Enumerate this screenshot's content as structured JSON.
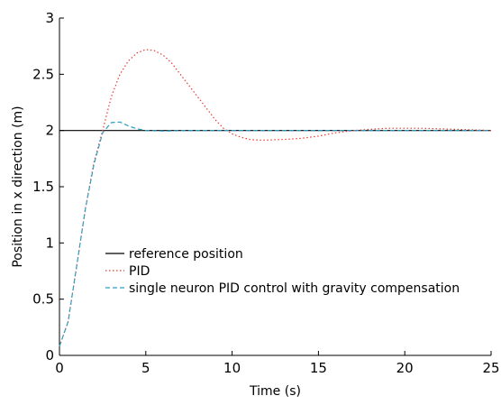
{
  "chart_data": {
    "type": "line",
    "xlabel": "Time (s)",
    "ylabel": "Position in x direction (m)",
    "xlim": [
      0,
      25
    ],
    "ylim": [
      0,
      3
    ],
    "x_ticks": [
      0,
      5,
      10,
      15,
      20,
      25
    ],
    "x_tick_labels": [
      "0",
      "5",
      "10",
      "15",
      "20",
      "25"
    ],
    "y_ticks": [
      0,
      0.5,
      1,
      1.5,
      2,
      2.5,
      3
    ],
    "y_tick_labels": [
      "0",
      "0.5",
      "1",
      "1.5",
      "2",
      "2.5",
      "3"
    ],
    "grid": false,
    "legend_position": "center-left",
    "series": [
      {
        "name": "reference position",
        "color": "#000000",
        "style": "solid",
        "x": [
          0,
          25
        ],
        "y": [
          2,
          2
        ]
      },
      {
        "name": "PID",
        "color": "#e8392f",
        "style": "dotted",
        "x": [
          0,
          0.5,
          1,
          1.5,
          2,
          2.5,
          3,
          3.5,
          4,
          4.5,
          5,
          5.5,
          6,
          6.5,
          7,
          7.5,
          8,
          8.5,
          9,
          9.5,
          10,
          10.5,
          11,
          11.5,
          12,
          12.5,
          13,
          14,
          15,
          16,
          17,
          18,
          19,
          20,
          21,
          22,
          23,
          24,
          25
        ],
        "y": [
          0.08,
          0.3,
          0.8,
          1.3,
          1.72,
          2.0,
          2.3,
          2.5,
          2.62,
          2.69,
          2.72,
          2.71,
          2.67,
          2.6,
          2.5,
          2.4,
          2.3,
          2.2,
          2.1,
          2.02,
          1.97,
          1.94,
          1.92,
          1.915,
          1.915,
          1.918,
          1.92,
          1.93,
          1.95,
          1.98,
          2.0,
          2.01,
          2.02,
          2.02,
          2.02,
          2.015,
          2.01,
          2.005,
          2.0
        ]
      },
      {
        "name": "single neuron PID control with gravity compensation",
        "color": "#2a9fc4",
        "style": "dashed",
        "x": [
          0,
          0.5,
          1,
          1.5,
          2,
          2.5,
          3,
          3.5,
          4,
          4.5,
          5,
          6,
          7,
          8,
          10,
          12,
          15,
          18,
          20,
          22,
          25
        ],
        "y": [
          0.08,
          0.3,
          0.8,
          1.3,
          1.7,
          1.98,
          2.07,
          2.075,
          2.04,
          2.015,
          2.0,
          1.995,
          1.998,
          2.0,
          2.0,
          2.0,
          2.0,
          2.0,
          2.0,
          2.0,
          2.0
        ]
      }
    ]
  }
}
